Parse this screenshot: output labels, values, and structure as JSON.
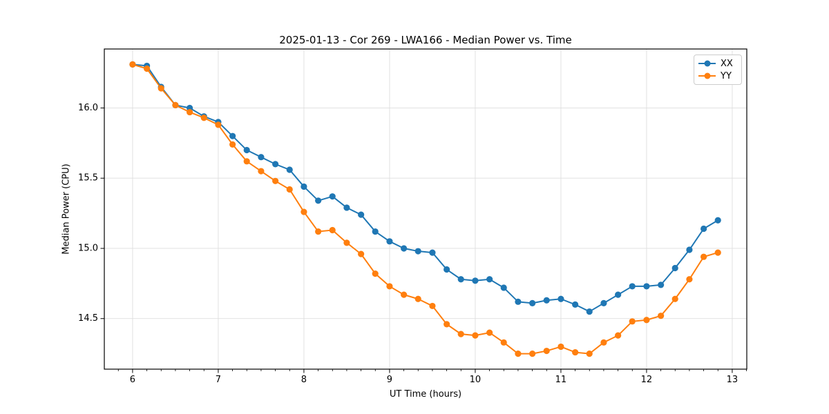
{
  "title": "2025-01-13 - Cor 269 - LWA166 - Median Power vs. Time",
  "chart_data": {
    "type": "line",
    "title": "2025-01-13 - Cor 269 - LWA166 - Median Power vs. Time",
    "xlabel": "UT Time (hours)",
    "ylabel": "Median Power (CPU)",
    "xlim": [
      5.67,
      13.17
    ],
    "ylim": [
      14.14,
      16.42
    ],
    "grid": true,
    "legend_position": "upper right",
    "x_ticks": [
      6,
      7,
      8,
      9,
      10,
      11,
      12,
      13
    ],
    "x_tick_labels": [
      "6",
      "7",
      "8",
      "9",
      "10",
      "11",
      "12",
      "13"
    ],
    "x_minor_divisions": 6,
    "y_ticks": [
      14.5,
      15.0,
      15.5,
      16.0
    ],
    "y_tick_labels": [
      "14.5",
      "15.0",
      "15.5",
      "16.0"
    ],
    "x": [
      6.0,
      6.167,
      6.333,
      6.5,
      6.667,
      6.833,
      7.0,
      7.167,
      7.333,
      7.5,
      7.667,
      7.833,
      8.0,
      8.167,
      8.333,
      8.5,
      8.667,
      8.833,
      9.0,
      9.167,
      9.333,
      9.5,
      9.667,
      9.833,
      10.0,
      10.167,
      10.333,
      10.5,
      10.667,
      10.833,
      11.0,
      11.167,
      11.333,
      11.5,
      11.667,
      11.833,
      12.0,
      12.167,
      12.333,
      12.5,
      12.667,
      12.833
    ],
    "series": [
      {
        "name": "XX",
        "color": "#1f77b4",
        "values": [
          16.31,
          16.3,
          16.15,
          16.02,
          16.0,
          15.94,
          15.9,
          15.8,
          15.7,
          15.65,
          15.6,
          15.56,
          15.44,
          15.34,
          15.37,
          15.29,
          15.24,
          15.12,
          15.05,
          15.0,
          14.98,
          14.97,
          14.85,
          14.78,
          14.77,
          14.78,
          14.72,
          14.62,
          14.61,
          14.63,
          14.64,
          14.6,
          14.55,
          14.61,
          14.67,
          14.73,
          14.73,
          14.74,
          14.86,
          14.99,
          15.14,
          15.2
        ]
      },
      {
        "name": "YY",
        "color": "#ff7f0e",
        "values": [
          16.31,
          16.28,
          16.14,
          16.02,
          15.97,
          15.93,
          15.88,
          15.74,
          15.62,
          15.55,
          15.48,
          15.42,
          15.26,
          15.12,
          15.13,
          15.04,
          14.96,
          14.82,
          14.73,
          14.67,
          14.64,
          14.59,
          14.46,
          14.39,
          14.38,
          14.4,
          14.33,
          14.25,
          14.25,
          14.27,
          14.3,
          14.26,
          14.25,
          14.33,
          14.38,
          14.48,
          14.49,
          14.52,
          14.64,
          14.78,
          14.94,
          14.97
        ]
      }
    ],
    "style": {
      "grid_color": "#dedede",
      "spine_color": "#000000",
      "tick_color": "#000000",
      "background": "#ffffff"
    }
  }
}
